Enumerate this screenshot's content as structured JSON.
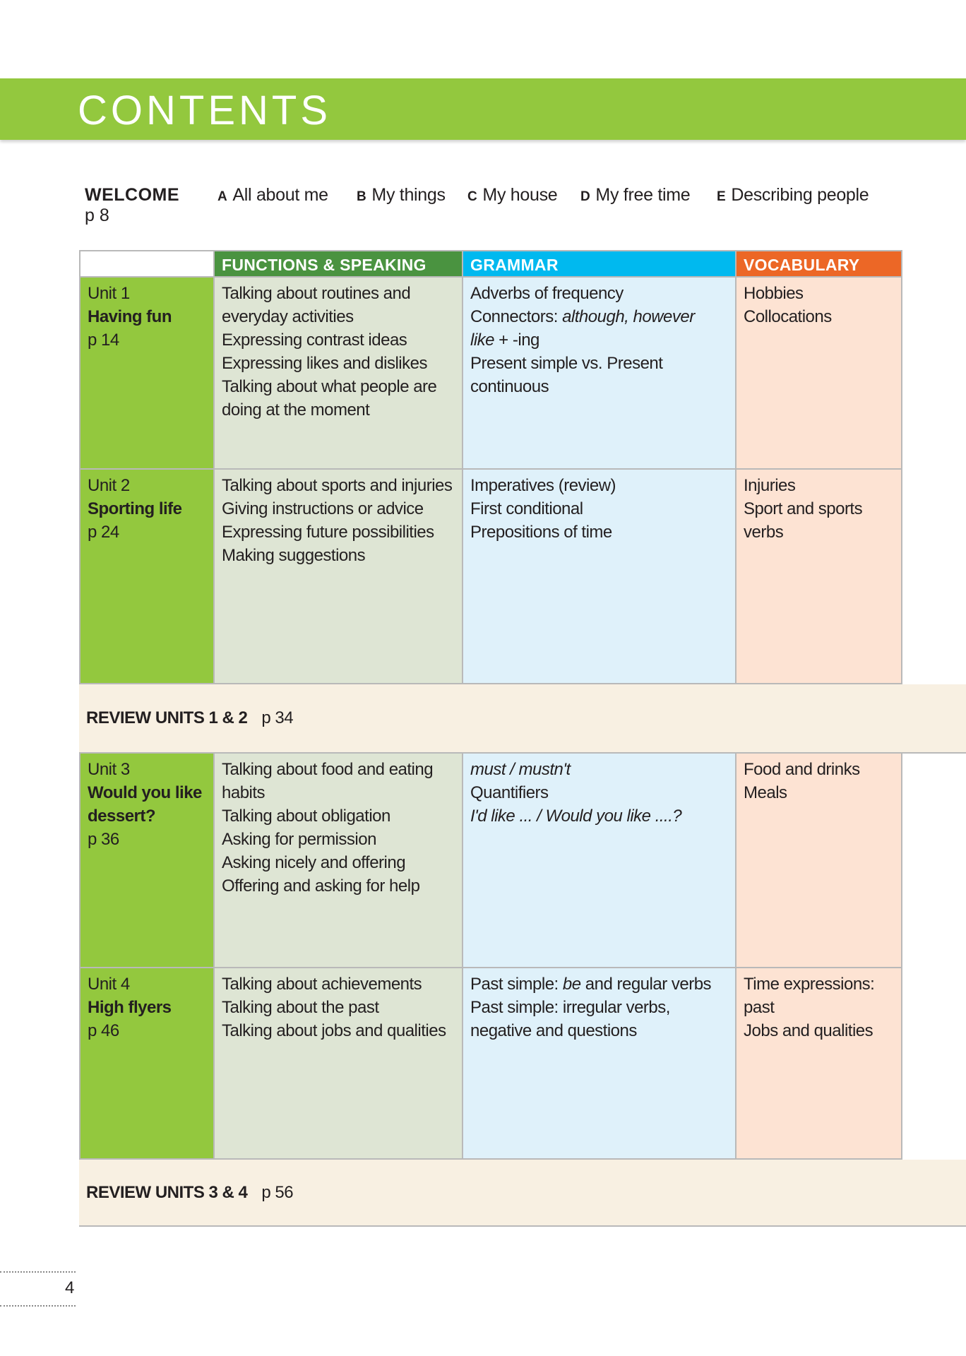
{
  "title": "CONTENTS",
  "welcome": {
    "label": "WELCOME",
    "page": "p 8",
    "items": [
      {
        "key": "A",
        "label": "All about me"
      },
      {
        "key": "B",
        "label": "My things"
      },
      {
        "key": "C",
        "label": "My house"
      },
      {
        "key": "D",
        "label": "My free time"
      },
      {
        "key": "E",
        "label": "Describing people"
      }
    ]
  },
  "headers": [
    "FUNCTIONS & SPEAKING",
    "GRAMMAR",
    "VOCABULARY"
  ],
  "colors": {
    "banner": "#93c83e",
    "functions": "#4a9340",
    "grammar": "#00b9ef",
    "vocabulary": "#ec6726"
  },
  "units": [
    {
      "unit": "Unit 1",
      "name": "Having fun",
      "page": "p 14",
      "functions": [
        "Talking about routines and everyday activities",
        "Expressing contrast ideas",
        "Expressing likes and dislikes",
        "Talking about what people are doing at the moment"
      ],
      "grammar": [
        "Adverbs of frequency",
        "Connectors: although, however",
        "like + -ing",
        "Present simple vs. Present continuous"
      ],
      "vocabulary": [
        "Hobbies",
        "Collocations"
      ]
    },
    {
      "unit": "Unit 2",
      "name": "Sporting life",
      "page": "p 24",
      "functions": [
        "Talking about sports and injuries",
        "Giving instructions or advice",
        "Expressing future possibilities",
        "Making suggestions"
      ],
      "grammar": [
        "Imperatives (review)",
        "First conditional",
        "Prepositions of time"
      ],
      "vocabulary": [
        "Injuries",
        "Sport and sports verbs"
      ]
    },
    {
      "unit": "Unit 3",
      "name": "Would you like dessert?",
      "page": "p 36",
      "functions": [
        "Talking about food and eating habits",
        "Talking about obligation",
        "Asking for permission",
        "Asking nicely and offering",
        "Offering and asking for help"
      ],
      "grammar": [
        "must / mustn't",
        "Quantifiers",
        "I'd like ... / Would you like ....?"
      ],
      "vocabulary": [
        "Food and drinks",
        "Meals"
      ]
    },
    {
      "unit": "Unit 4",
      "name": "High flyers",
      "page": "p 46",
      "functions": [
        "Talking about achievements",
        "Talking about the past",
        "Talking about jobs and qualities"
      ],
      "grammar": [
        "Past simple: be and regular verbs",
        "Past simple: irregular verbs, negative and questions"
      ],
      "vocabulary": [
        "Time expressions: past",
        "Jobs and qualities"
      ]
    }
  ],
  "reviews": [
    {
      "label": "REVIEW UNITS 1 & 2",
      "page": "p 34"
    },
    {
      "label": "REVIEW UNITS 3 & 4",
      "page": "p 56"
    }
  ],
  "page_number": "4"
}
